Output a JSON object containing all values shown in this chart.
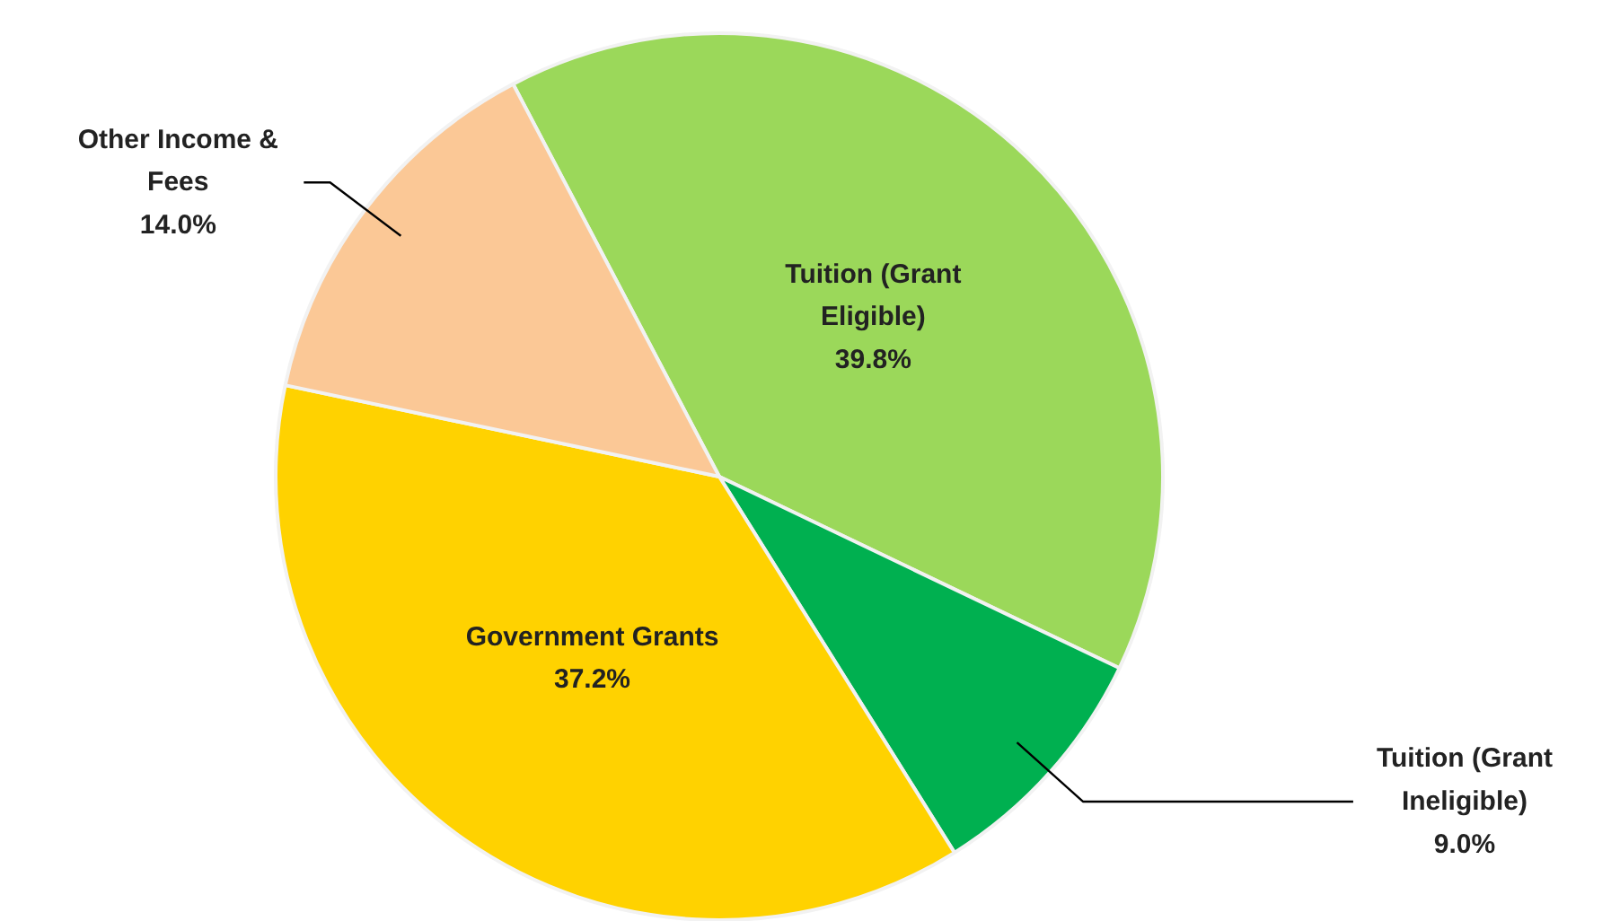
{
  "chart_data": {
    "type": "pie",
    "categories": [
      "Tuition (Grant Eligible)",
      "Tuition (Grant Ineligible)",
      "Government Grants",
      "Other Income & Fees"
    ],
    "values": [
      39.8,
      9.0,
      37.2,
      14.0
    ],
    "colors": [
      "#9bd85a",
      "#00b050",
      "#ffd200",
      "#fbc896"
    ],
    "value_labels": [
      "39.8%",
      "9.0%",
      "37.2%",
      "14.0%"
    ]
  }
}
